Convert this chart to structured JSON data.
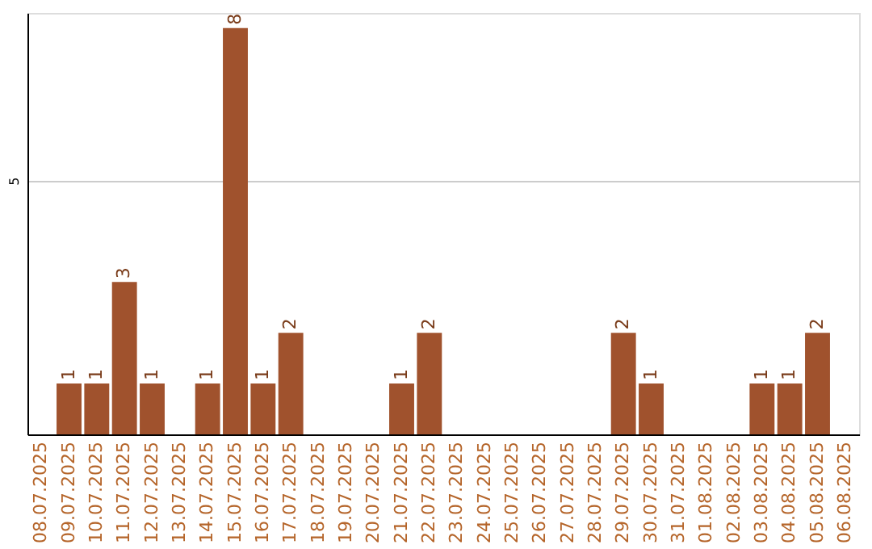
{
  "chart_data": {
    "type": "bar",
    "categories": [
      "08.07.2025",
      "09.07.2025",
      "10.07.2025",
      "11.07.2025",
      "12.07.2025",
      "13.07.2025",
      "14.07.2025",
      "15.07.2025",
      "16.07.2025",
      "17.07.2025",
      "18.07.2025",
      "19.07.2025",
      "20.07.2025",
      "21.07.2025",
      "22.07.2025",
      "23.07.2025",
      "24.07.2025",
      "25.07.2025",
      "26.07.2025",
      "27.07.2025",
      "28.07.2025",
      "29.07.2025",
      "30.07.2025",
      "31.07.2025",
      "01.08.2025",
      "02.08.2025",
      "03.08.2025",
      "04.08.2025",
      "05.08.2025",
      "06.08.2025"
    ],
    "values": [
      0,
      1,
      1,
      3,
      1,
      0,
      1,
      8,
      1,
      2,
      0,
      0,
      0,
      1,
      2,
      0,
      0,
      0,
      0,
      0,
      0,
      2,
      1,
      0,
      0,
      0,
      1,
      1,
      2,
      0
    ],
    "value_labels": [
      null,
      "1",
      "1",
      "3",
      "1",
      null,
      "1",
      "8",
      "1",
      "2",
      null,
      null,
      null,
      "1",
      "2",
      null,
      null,
      null,
      null,
      null,
      null,
      "2",
      "1",
      null,
      null,
      null,
      "1",
      "1",
      "2",
      null
    ],
    "color": "#a0522d",
    "ylim": [
      0,
      8.3
    ],
    "yticks": [
      5
    ],
    "grid": "y"
  }
}
